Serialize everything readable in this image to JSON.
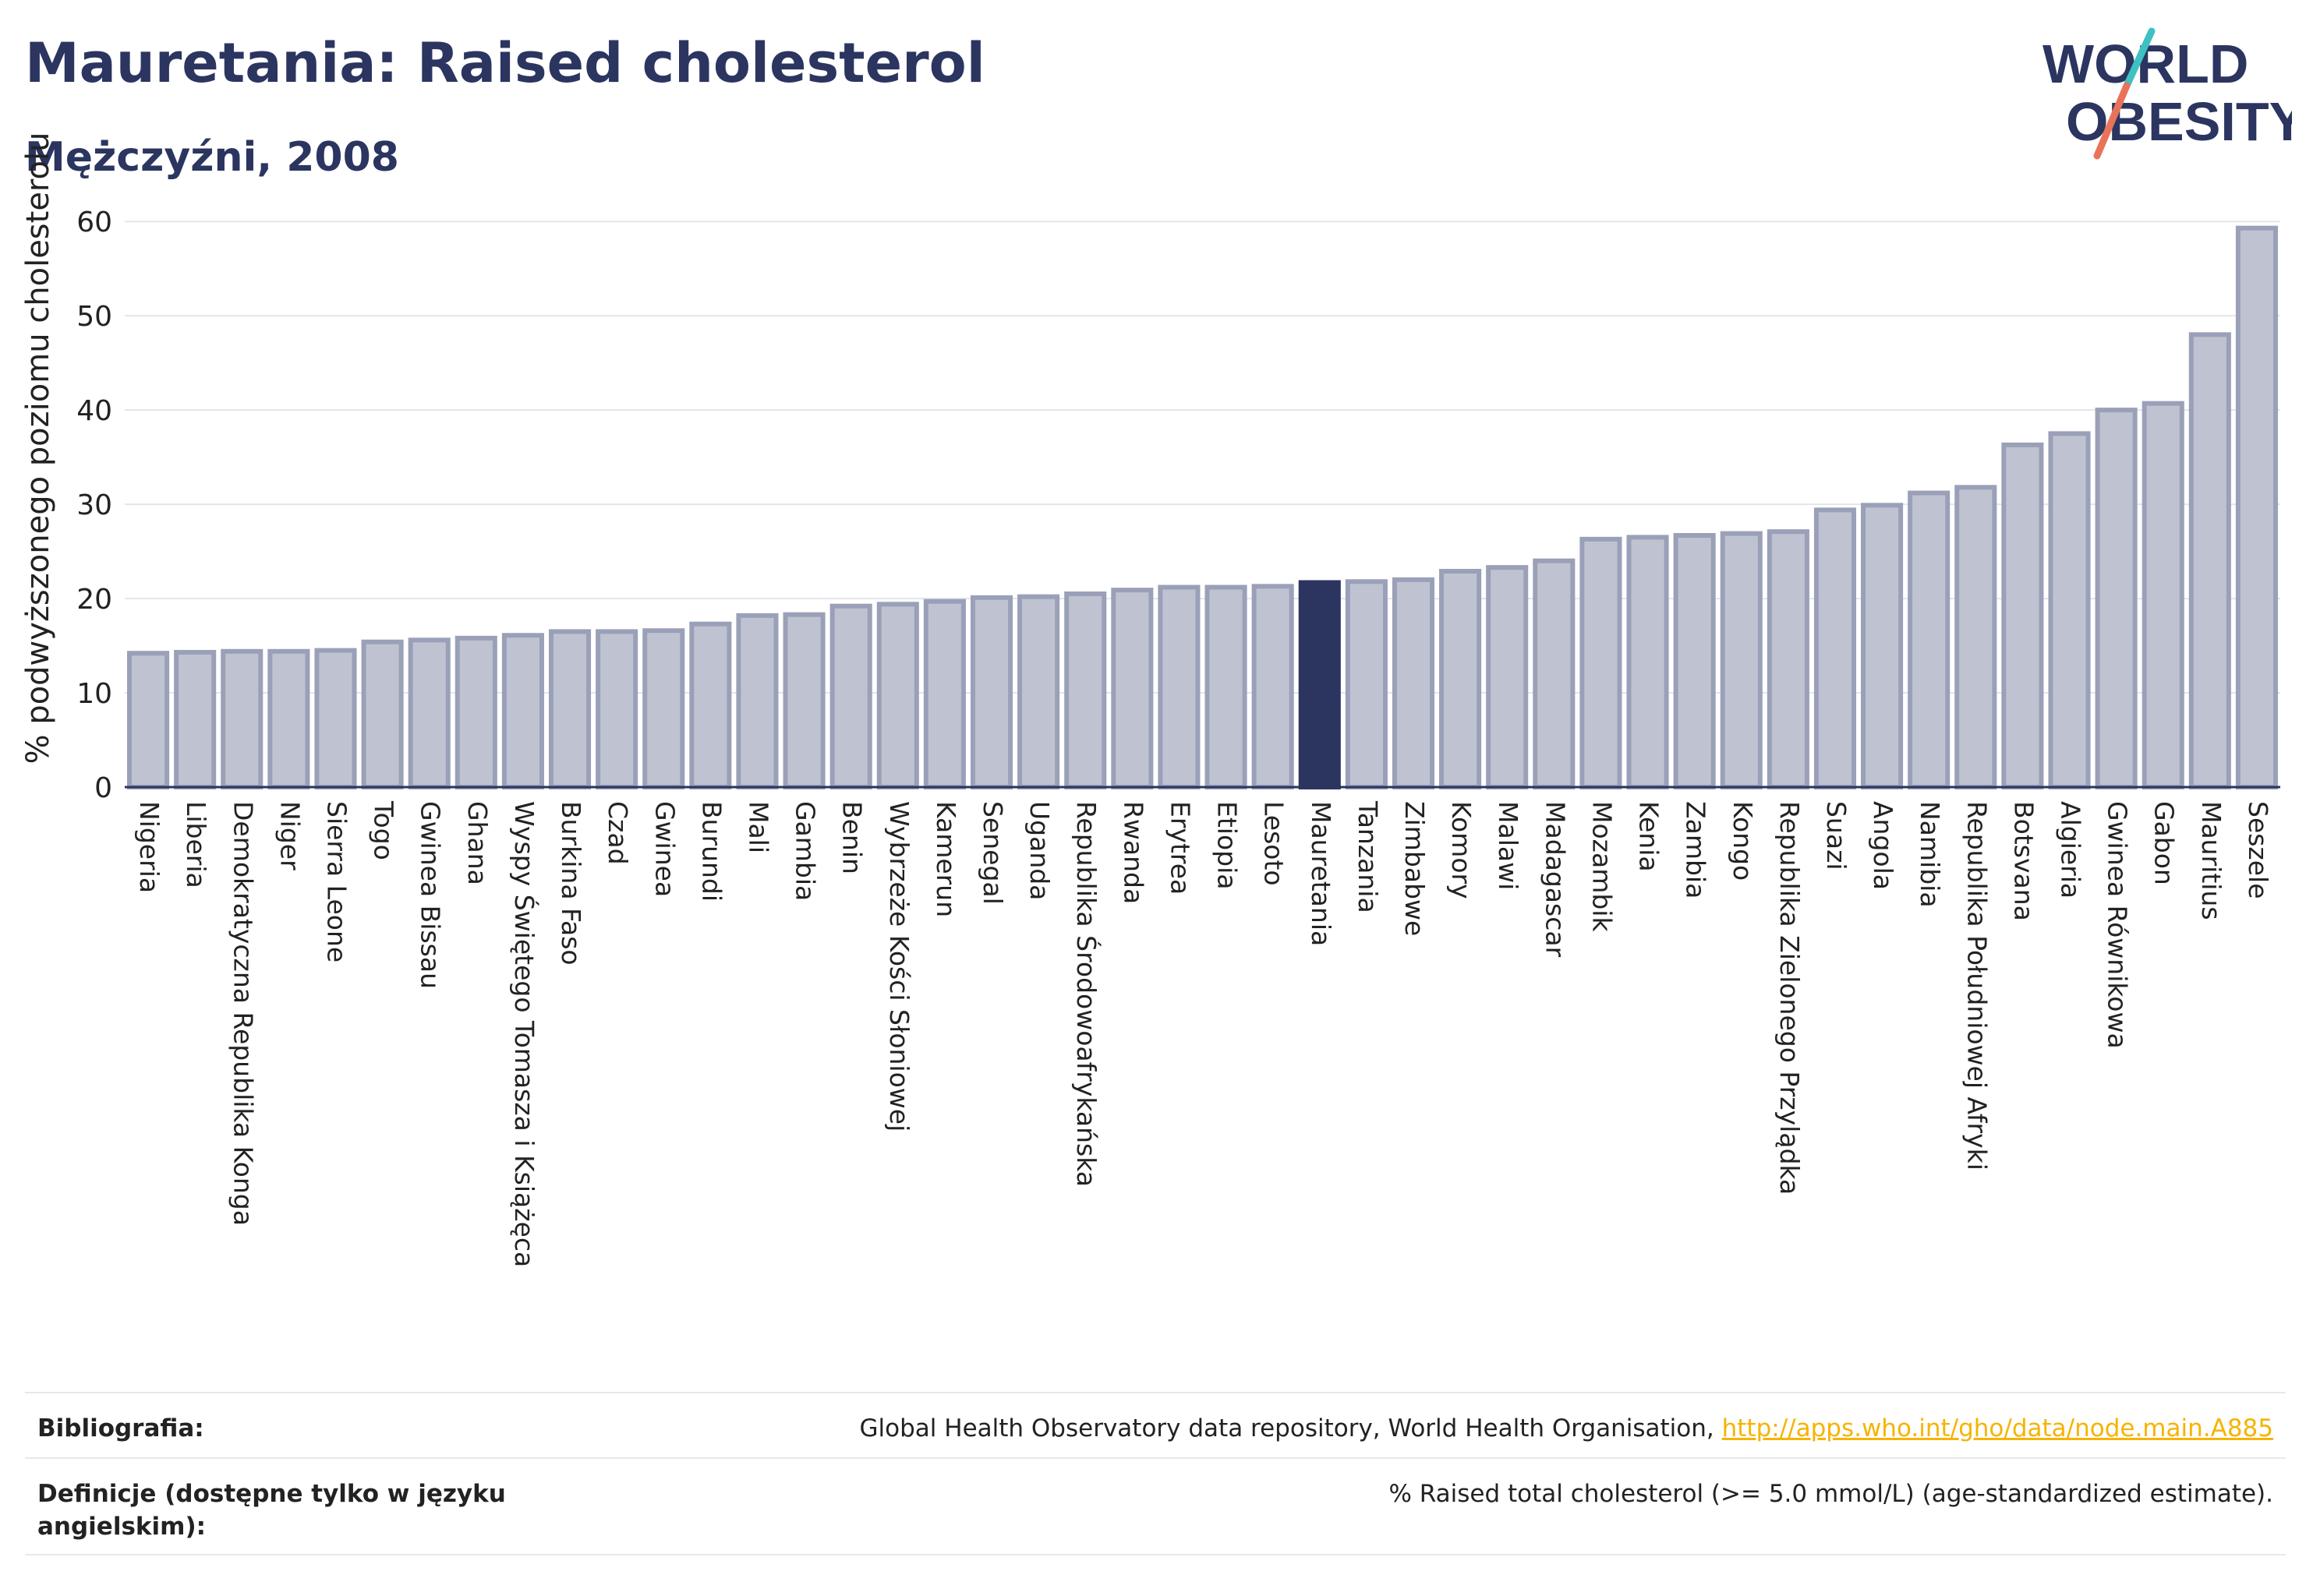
{
  "header": {
    "title": "Mauretania: Raised cholesterol",
    "subtitle": "Mężczyźni, 2008"
  },
  "logo": {
    "line1": "WORLD",
    "line2": "OBESITY"
  },
  "colors": {
    "bar_fill": "#bfc3d1",
    "bar_stroke": "#9aa0b8",
    "highlight": "#2b3560",
    "grid": "#e3e5ec",
    "logo_teal": "#3ec1c1",
    "logo_coral": "#e9735a",
    "link": "#f5b400"
  },
  "chart_data": {
    "type": "bar",
    "ylabel": "% podwyższonego poziomu cholesterolu",
    "ylim": [
      0,
      62
    ],
    "yticks": [
      0,
      10,
      20,
      30,
      40,
      50,
      60
    ],
    "grid": true,
    "highlight": "Mauretania",
    "categories": [
      "Nigeria",
      "Liberia",
      "Demokratyczna Republika Konga",
      "Niger",
      "Sierra Leone",
      "Togo",
      "Gwinea Bissau",
      "Ghana",
      "Wyspy Świętego Tomasza i Książęca",
      "Burkina Faso",
      "Czad",
      "Gwinea",
      "Burundi",
      "Mali",
      "Gambia",
      "Benin",
      "Wybrzeże Kości Słoniowej",
      "Kamerun",
      "Senegal",
      "Uganda",
      "Republika Środowoafrykańska",
      "Rwanda",
      "Erytrea",
      "Etiopia",
      "Lesoto",
      "Mauretania",
      "Tanzania",
      "Zimbabwe",
      "Komory",
      "Malawi",
      "Madagascar",
      "Mozambik",
      "Kenia",
      "Zambia",
      "Kongo",
      "Republika Zielonego Przylądka",
      "Suazi",
      "Angola",
      "Namibia",
      "Republika Południowej Afryki",
      "Botsvana",
      "Algieria",
      "Gwinea Równikowa",
      "Gabon",
      "Mauritius",
      "Seszele"
    ],
    "values": [
      14.2,
      14.3,
      14.4,
      14.4,
      14.5,
      15.4,
      15.6,
      15.8,
      16.1,
      16.5,
      16.5,
      16.6,
      17.3,
      18.2,
      18.3,
      19.2,
      19.4,
      19.7,
      20.1,
      20.2,
      20.5,
      20.9,
      21.2,
      21.2,
      21.3,
      21.7,
      21.8,
      22.0,
      22.9,
      23.3,
      24.0,
      26.3,
      26.5,
      26.7,
      26.9,
      27.1,
      29.4,
      29.9,
      31.2,
      31.8,
      36.3,
      37.5,
      40.0,
      40.7,
      48.0,
      59.3
    ]
  },
  "footer": {
    "bibliography_label": "Bibliografia:",
    "bibliography_text": "Global Health Observatory data repository, World Health Organisation, ",
    "bibliography_link": "http://apps.who.int/gho/data/node.main.A885",
    "definitions_label": "Definicje (dostępne tylko w języku angielskim):",
    "definitions_text": "% Raised total cholesterol (>= 5.0 mmol/L) (age-standardized estimate)."
  }
}
